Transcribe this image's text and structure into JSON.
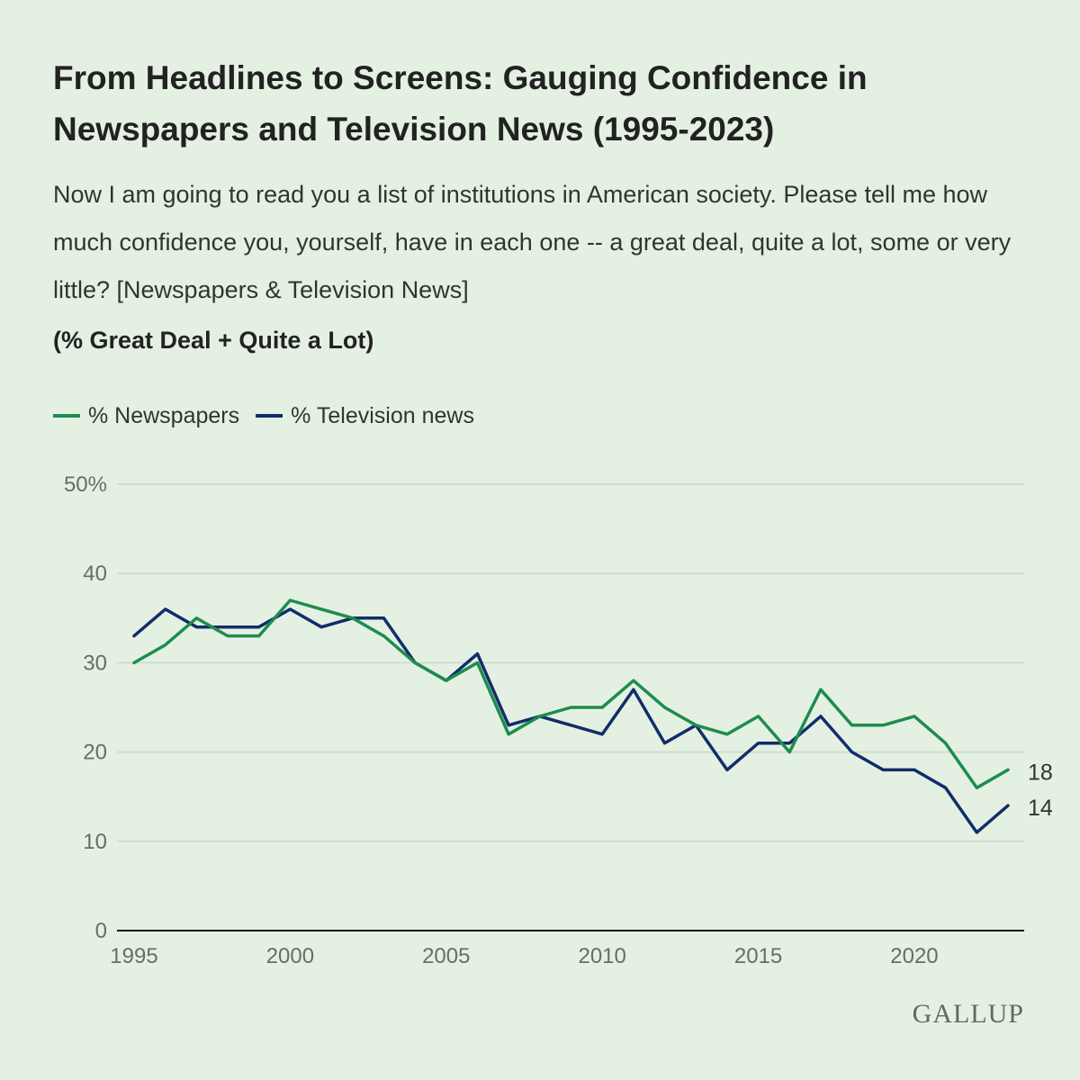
{
  "brand": {
    "name": "GALLUP"
  },
  "chart_data": {
    "type": "line",
    "title": "From Headlines to Screens: Gauging Confidence in Newspapers and Television News (1995-2023)",
    "subtitle": "Now I am going to read you a list of institutions in American society. Please tell me how much confidence you, yourself, have in each one -- a great deal, quite a lot, some or very little? [Newspapers & Television News]",
    "measure": "(% Great Deal + Quite a Lot)",
    "xlabel": "",
    "ylabel": "",
    "xlim": [
      1995,
      2023
    ],
    "ylim": [
      0,
      50
    ],
    "x_ticks": [
      "1995",
      "2000",
      "2005",
      "2010",
      "2015",
      "2020"
    ],
    "y_ticks": [
      "0",
      "10",
      "20",
      "30",
      "40",
      "50%"
    ],
    "grid": true,
    "legend_position": "top-left",
    "x": [
      1995,
      1996,
      1997,
      1998,
      1999,
      2000,
      2001,
      2002,
      2003,
      2004,
      2005,
      2006,
      2007,
      2008,
      2009,
      2010,
      2011,
      2012,
      2013,
      2014,
      2015,
      2016,
      2017,
      2018,
      2019,
      2020,
      2021,
      2022,
      2023
    ],
    "series": [
      {
        "name": "% Newspapers",
        "color": "#1e8c4e",
        "values": [
          30,
          32,
          35,
          33,
          33,
          37,
          36,
          35,
          33,
          30,
          28,
          30,
          22,
          24,
          25,
          25,
          28,
          25,
          23,
          22,
          24,
          20,
          27,
          23,
          23,
          24,
          21,
          16,
          18
        ],
        "end_label": "18"
      },
      {
        "name": "% Television news",
        "color": "#122c6b",
        "values": [
          33,
          36,
          34,
          34,
          34,
          36,
          34,
          35,
          35,
          30,
          28,
          31,
          23,
          24,
          23,
          22,
          27,
          21,
          23,
          18,
          21,
          21,
          24,
          20,
          18,
          18,
          16,
          11,
          14
        ],
        "end_label": "14"
      }
    ]
  }
}
